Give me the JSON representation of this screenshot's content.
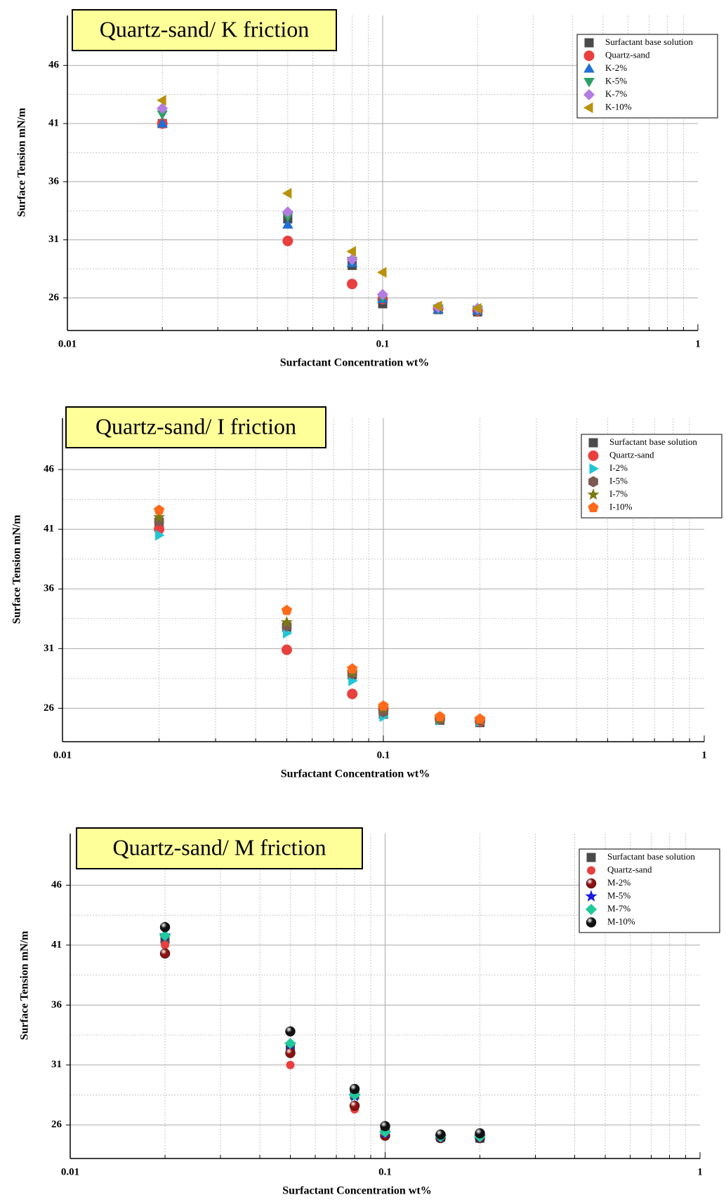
{
  "chart_data": [
    {
      "type": "scatter",
      "title": "Quartz-sand/ K friction",
      "x_label": "Surfactant Concentration wt%",
      "y_label": "Surface Tension mN/m",
      "x": [
        0.02,
        0.05,
        0.08,
        0.1,
        0.15,
        0.2
      ],
      "xlim": [
        0.01,
        1
      ],
      "xticks": [
        0.01,
        0.1,
        1
      ],
      "log_x": true,
      "ylim": [
        23.2,
        50.3
      ],
      "yticks": [
        26,
        31,
        36,
        41,
        46
      ],
      "grid": true,
      "legend": "top-right",
      "series": [
        {
          "name": "Surfactant base solution",
          "color": "#4a4a4a",
          "marker": "square",
          "values": [
            41,
            32.8,
            28.8,
            25.5,
            25,
            24.8
          ]
        },
        {
          "name": "Quartz-sand",
          "color": "#e8403f",
          "marker": "circle",
          "values": [
            41,
            30.9,
            27.2,
            25.9,
            25.1,
            24.9
          ]
        },
        {
          "name": "K-2%",
          "color": "#1f6fd6",
          "marker": "triangle-up",
          "values": [
            41,
            32.3,
            29,
            25.9,
            25,
            24.9
          ]
        },
        {
          "name": "K-5%",
          "color": "#2aa267",
          "marker": "triangle-down",
          "values": [
            41.8,
            33,
            29.2,
            26,
            25.1,
            25
          ]
        },
        {
          "name": "K-7%",
          "color": "#b57be0",
          "marker": "diamond",
          "values": [
            42.3,
            33.4,
            29.3,
            26.3,
            25.2,
            25.1
          ]
        },
        {
          "name": "K-10%",
          "color": "#b8920c",
          "marker": "triangle-left",
          "values": [
            43,
            35,
            30,
            28.2,
            25.3,
            25.1
          ]
        }
      ]
    },
    {
      "type": "scatter",
      "title": "Quartz-sand/ I friction",
      "x_label": "Surfactant Concentration wt%",
      "y_label": "Surface Tension mN/m",
      "x": [
        0.02,
        0.05,
        0.08,
        0.1,
        0.15,
        0.2
      ],
      "xlim": [
        0.01,
        1
      ],
      "xticks": [
        0.01,
        0.1,
        1
      ],
      "log_x": true,
      "ylim": [
        23.2,
        50.3
      ],
      "yticks": [
        26,
        31,
        36,
        41,
        46
      ],
      "grid": true,
      "legend": "top-right",
      "series": [
        {
          "name": "Surfactant base solution",
          "color": "#4a4a4a",
          "marker": "square",
          "values": [
            41.5,
            32.8,
            28.8,
            25.5,
            25,
            24.8
          ]
        },
        {
          "name": "Quartz-sand",
          "color": "#e8403f",
          "marker": "circle",
          "values": [
            41,
            30.9,
            27.2,
            25.9,
            25.1,
            24.9
          ]
        },
        {
          "name": "I-2%",
          "color": "#20c6d6",
          "marker": "triangle-right",
          "values": [
            40.5,
            32.3,
            28.3,
            25.3,
            25,
            24.9
          ]
        },
        {
          "name": "I-5%",
          "color": "#7b5a52",
          "marker": "hexagon",
          "values": [
            41.7,
            32.9,
            28.9,
            25.7,
            25.1,
            25
          ]
        },
        {
          "name": "I-7%",
          "color": "#7a7a12",
          "marker": "star",
          "values": [
            42,
            33.2,
            29,
            26,
            25.1,
            25
          ]
        },
        {
          "name": "I-10%",
          "color": "#ff6a1a",
          "marker": "pentagon",
          "values": [
            42.6,
            34.2,
            29.3,
            26.2,
            25.3,
            25.1
          ]
        }
      ]
    },
    {
      "type": "scatter",
      "title": "Quartz-sand/ M friction",
      "x_label": "Surfactant Concentration wt%",
      "y_label": "Surface Tension mN/m",
      "x": [
        0.02,
        0.05,
        0.08,
        0.1,
        0.15,
        0.2
      ],
      "xlim": [
        0.01,
        1
      ],
      "xticks": [
        0.01,
        0.1,
        1
      ],
      "log_x": true,
      "ylim": [
        23.2,
        50.3
      ],
      "yticks": [
        26,
        31,
        36,
        41,
        46
      ],
      "grid": true,
      "legend": "top-right",
      "series": [
        {
          "name": "Surfactant base solution",
          "color": "#4a4a4a",
          "marker": "square",
          "values": [
            41.5,
            32.5,
            28.5,
            25.3,
            25,
            24.9
          ]
        },
        {
          "name": "Quartz-sand",
          "color": "#e8403f",
          "marker": "small-circle",
          "values": [
            41,
            31,
            27.3,
            25.1,
            24.9,
            24.9
          ]
        },
        {
          "name": "M-2%",
          "color": "#8b1010",
          "marker": "sphere",
          "values": [
            40.3,
            32,
            27.6,
            25.1,
            24.9,
            24.9
          ]
        },
        {
          "name": "M-5%",
          "color": "#1a1ae0",
          "marker": "star",
          "values": [
            41.8,
            32.7,
            28.4,
            25.3,
            25,
            25
          ]
        },
        {
          "name": "M-7%",
          "color": "#20c99a",
          "marker": "diamond",
          "values": [
            41.8,
            32.8,
            28.5,
            25.4,
            25,
            25
          ]
        },
        {
          "name": "M-10%",
          "color": "#111111",
          "marker": "sphere",
          "values": [
            42.5,
            33.8,
            29,
            25.9,
            25.2,
            25.3
          ]
        }
      ]
    }
  ]
}
